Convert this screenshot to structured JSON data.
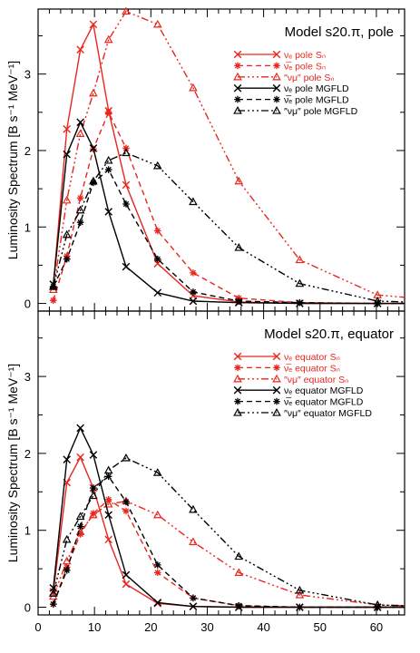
{
  "chart_data": [
    {
      "type": "line",
      "title": "Model s20.π, pole",
      "ylabel": "Luminosity Spectrum [B s⁻¹ MeV⁻¹]",
      "xlabel": "",
      "xlim": [
        0,
        65
      ],
      "ylim": [
        -0.1,
        3.85
      ],
      "yticks": [
        "0",
        "1",
        "2",
        "3"
      ],
      "xticks": [
        "0",
        "10",
        "20",
        "30",
        "40",
        "50",
        "60"
      ],
      "x": [
        2.7,
        5.1,
        7.5,
        9.8,
        12.5,
        15.6,
        21.2,
        27.5,
        35.6,
        46.4,
        60.2,
        65
      ],
      "series": [
        {
          "name": "νₑ pole Sₙ",
          "color": "#e8261e",
          "dash": "",
          "marker": "x",
          "values": [
            0.25,
            2.28,
            3.32,
            3.65,
            2.52,
            1.55,
            0.52,
            0.1,
            0.02,
            0.0,
            0.0,
            0.0
          ]
        },
        {
          "name": "ν̅ₑ pole Sₙ",
          "color": "#e8261e",
          "dash": "6,4",
          "marker": "star",
          "values": [
            0.04,
            0.62,
            1.38,
            2.02,
            2.5,
            2.03,
            0.95,
            0.4,
            0.07,
            0.01,
            0.0,
            0.0
          ]
        },
        {
          "name": "″νμ″ pole Sₙ",
          "color": "#e8261e",
          "dash": "8,3,2,3,2,3,2,3",
          "marker": "tri",
          "values": [
            0.18,
            1.35,
            2.22,
            2.75,
            3.45,
            3.82,
            3.65,
            2.82,
            1.6,
            0.57,
            0.11,
            0.08
          ]
        },
        {
          "name": "νₑ pole MGFLD",
          "color": "#000000",
          "dash": "",
          "marker": "x",
          "values": [
            0.25,
            1.95,
            2.37,
            2.03,
            1.2,
            0.48,
            0.14,
            0.03,
            0.01,
            0.0,
            0.0,
            0.0
          ]
        },
        {
          "name": "ν̅ₑ pole MGFLD",
          "color": "#000000",
          "dash": "6,4",
          "marker": "star",
          "values": [
            0.22,
            0.58,
            1.06,
            1.58,
            1.75,
            1.3,
            0.58,
            0.15,
            0.03,
            0.01,
            0.0,
            0.0
          ]
        },
        {
          "name": "″νμ″ pole MGFLD",
          "color": "#000000",
          "dash": "8,3,2,3,2,3,2,3",
          "marker": "tri",
          "values": [
            0.22,
            0.9,
            1.22,
            1.6,
            1.87,
            1.97,
            1.8,
            1.33,
            0.73,
            0.26,
            0.03,
            0.02
          ]
        }
      ]
    },
    {
      "type": "line",
      "title": "Model s20.π, equator",
      "ylabel": "Luminosity Spectrum [B s⁻¹ MeV⁻¹]",
      "xlabel": "",
      "xlim": [
        0,
        65
      ],
      "ylim": [
        -0.1,
        3.85
      ],
      "yticks": [
        "0",
        "1",
        "2",
        "3"
      ],
      "xticks": [
        "0",
        "10",
        "20",
        "30",
        "40",
        "50",
        "60"
      ],
      "x": [
        2.7,
        5.1,
        7.5,
        9.8,
        12.5,
        15.6,
        21.2,
        27.5,
        35.6,
        46.4,
        60.2,
        65
      ],
      "series": [
        {
          "name": "νₑ equator Sₙ",
          "color": "#e8261e",
          "dash": "",
          "marker": "x",
          "values": [
            0.2,
            1.62,
            1.95,
            1.55,
            0.88,
            0.3,
            0.05,
            0.01,
            0.0,
            0.0,
            0.0,
            0.0
          ]
        },
        {
          "name": "ν̅ₑ equator Sₙ",
          "color": "#e8261e",
          "dash": "6,4",
          "marker": "star",
          "values": [
            0.04,
            0.52,
            0.95,
            1.22,
            1.4,
            1.25,
            0.45,
            0.12,
            0.02,
            0.0,
            0.0,
            0.0
          ]
        },
        {
          "name": "″νμ″ equator Sₙ",
          "color": "#e8261e",
          "dash": "8,3,2,3,2,3,2,3",
          "marker": "tri",
          "values": [
            0.14,
            0.6,
            0.98,
            1.2,
            1.34,
            1.38,
            1.2,
            0.85,
            0.45,
            0.16,
            0.03,
            0.02
          ]
        },
        {
          "name": "νₑ equator MGFLD",
          "color": "#000000",
          "dash": "",
          "marker": "x",
          "values": [
            0.25,
            1.92,
            2.33,
            1.98,
            1.2,
            0.42,
            0.06,
            0.01,
            0.0,
            0.0,
            0.0,
            0.0
          ]
        },
        {
          "name": "ν̅ₑ equator MGFLD",
          "color": "#000000",
          "dash": "6,4",
          "marker": "star",
          "values": [
            0.04,
            0.48,
            1.05,
            1.55,
            1.7,
            1.37,
            0.55,
            0.12,
            0.02,
            0.0,
            0.0,
            0.0
          ]
        },
        {
          "name": "″νμ″ equator MGFLD",
          "color": "#000000",
          "dash": "8,3,2,3,2,3,2,3",
          "marker": "tri",
          "values": [
            0.18,
            0.88,
            1.18,
            1.45,
            1.78,
            1.94,
            1.75,
            1.27,
            0.66,
            0.22,
            0.03,
            0.02
          ]
        }
      ]
    }
  ]
}
